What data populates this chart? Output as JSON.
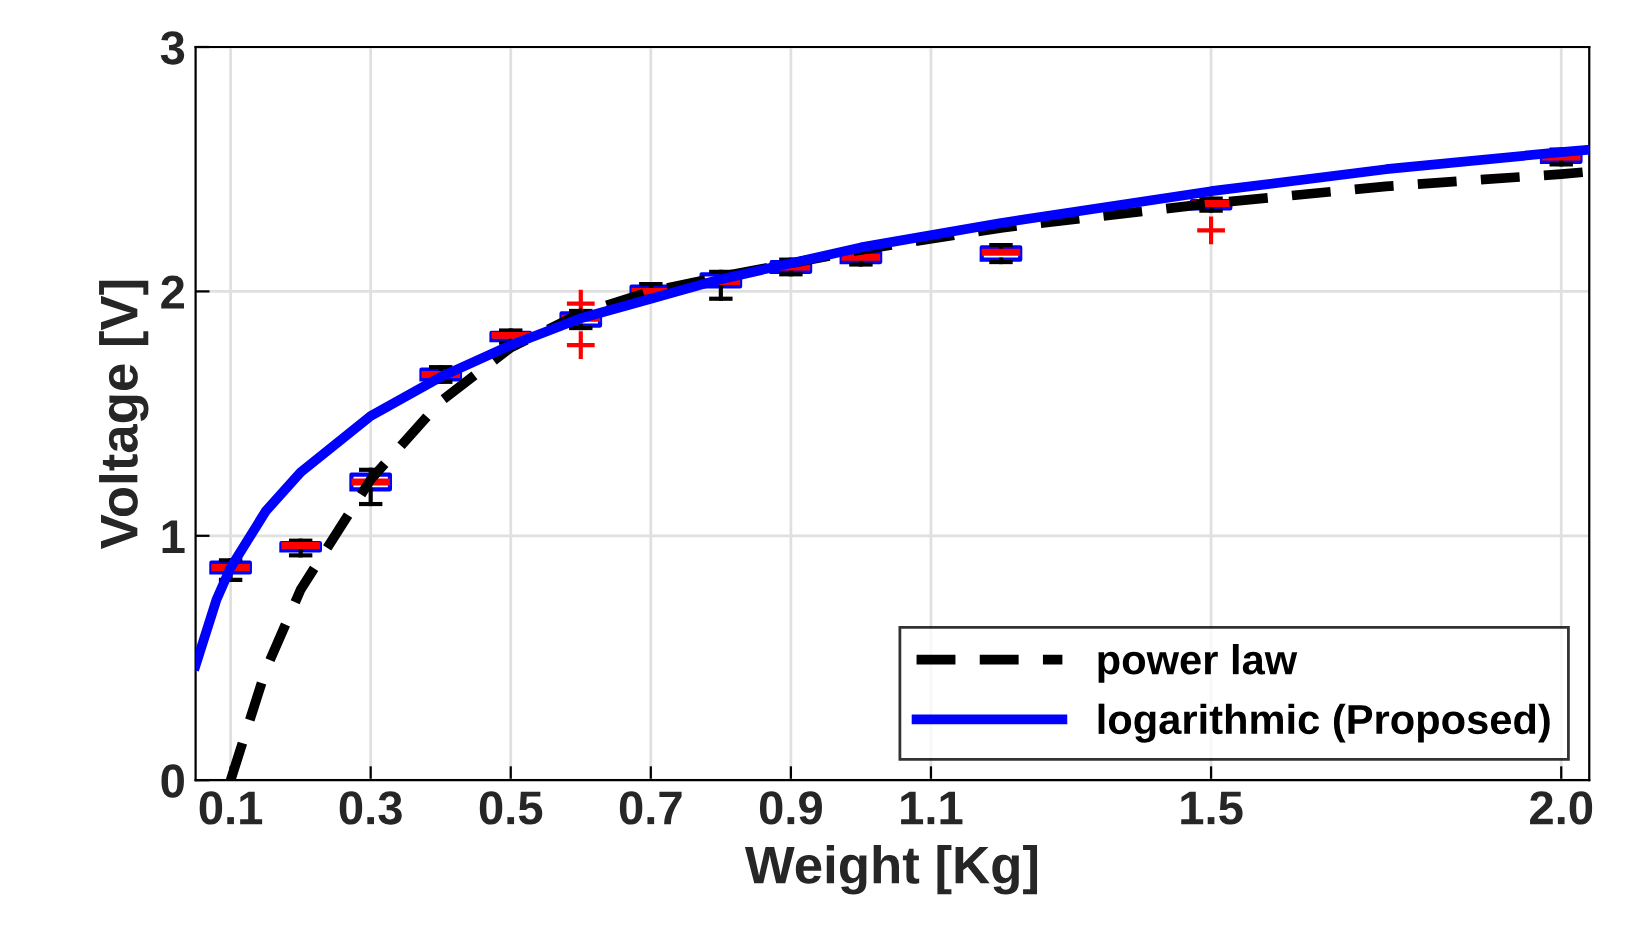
{
  "chart_data": {
    "type": "line",
    "xlabel": "Weight [Kg]",
    "ylabel": "Voltage [V]",
    "xlim": [
      0.05,
      2.04
    ],
    "ylim": [
      0,
      3
    ],
    "xticks": [
      0.1,
      0.3,
      0.5,
      0.7,
      0.9,
      1.1,
      1.5,
      {
        "value": 2,
        "label": "2.0"
      }
    ],
    "yticks": [
      0,
      1,
      2,
      3
    ],
    "grid": true,
    "legend": "bottom right",
    "series": [
      {
        "type": "box",
        "color": "#0000ff",
        "x": [
          0.1,
          0.2,
          0.3,
          0.4,
          0.5,
          0.6,
          0.7,
          0.8,
          0.9,
          1.0,
          1.2,
          1.5,
          2.0
        ],
        "boxes": [
          {
            "low": 0.82,
            "q1": 0.85,
            "median": 0.87,
            "q3": 0.89,
            "high": 0.9
          },
          {
            "low": 0.92,
            "q1": 0.94,
            "median": 0.96,
            "q3": 0.97,
            "high": 0.98
          },
          {
            "low": 1.13,
            "q1": 1.19,
            "median": 1.22,
            "q3": 1.25,
            "high": 1.27
          },
          {
            "low": 1.63,
            "q1": 1.64,
            "median": 1.66,
            "q3": 1.68,
            "high": 1.69
          },
          {
            "low": 1.79,
            "q1": 1.8,
            "median": 1.82,
            "q3": 1.83,
            "high": 1.84
          },
          {
            "low": 1.85,
            "q1": 1.86,
            "median": 1.89,
            "q3": 1.91,
            "high": 1.92,
            "outliers": [
              1.78,
              1.95
            ]
          },
          {
            "low": 1.98,
            "q1": 1.99,
            "median": 2.0,
            "q3": 2.02,
            "high": 2.03
          },
          {
            "low": 1.97,
            "q1": 2.02,
            "median": 2.04,
            "q3": 2.07,
            "high": 2.08
          },
          {
            "low": 2.07,
            "q1": 2.08,
            "median": 2.1,
            "q3": 2.12,
            "high": 2.13
          },
          {
            "low": 2.11,
            "q1": 2.12,
            "median": 2.14,
            "q3": 2.16,
            "high": 2.17
          },
          {
            "low": 2.12,
            "q1": 2.13,
            "median": 2.16,
            "q3": 2.18,
            "high": 2.19
          },
          {
            "low": 2.33,
            "q1": 2.34,
            "median": 2.36,
            "q3": 2.37,
            "high": 2.38,
            "outliers": [
              2.25
            ]
          },
          {
            "low": 2.52,
            "q1": 2.53,
            "median": 2.55,
            "q3": 2.57,
            "high": 2.58
          }
        ]
      },
      {
        "name": "power law",
        "color": "#000000",
        "line_style": "dashed",
        "x": [
          0.1,
          0.15,
          0.2,
          0.3,
          0.4,
          0.5,
          0.6,
          0.7,
          0.8,
          1.0,
          1.2,
          1.5,
          1.75,
          2.0,
          2.04
        ],
        "values": [
          0,
          0.45,
          0.78,
          1.23,
          1.55,
          1.77,
          1.91,
          2.0,
          2.06,
          2.17,
          2.26,
          2.36,
          2.43,
          2.48,
          2.49
        ]
      },
      {
        "name": "logarithmic (Proposed)",
        "color": "#0000ff",
        "line_style": "solid",
        "x": [
          0.05,
          0.08,
          0.1,
          0.15,
          0.2,
          0.3,
          0.4,
          0.5,
          0.6,
          0.7,
          0.8,
          1.0,
          1.2,
          1.5,
          1.75,
          2.0,
          2.04
        ],
        "values": [
          0.47,
          0.74,
          0.87,
          1.1,
          1.26,
          1.49,
          1.65,
          1.78,
          1.89,
          1.97,
          2.05,
          2.18,
          2.28,
          2.41,
          2.5,
          2.57,
          2.58
        ]
      }
    ]
  }
}
